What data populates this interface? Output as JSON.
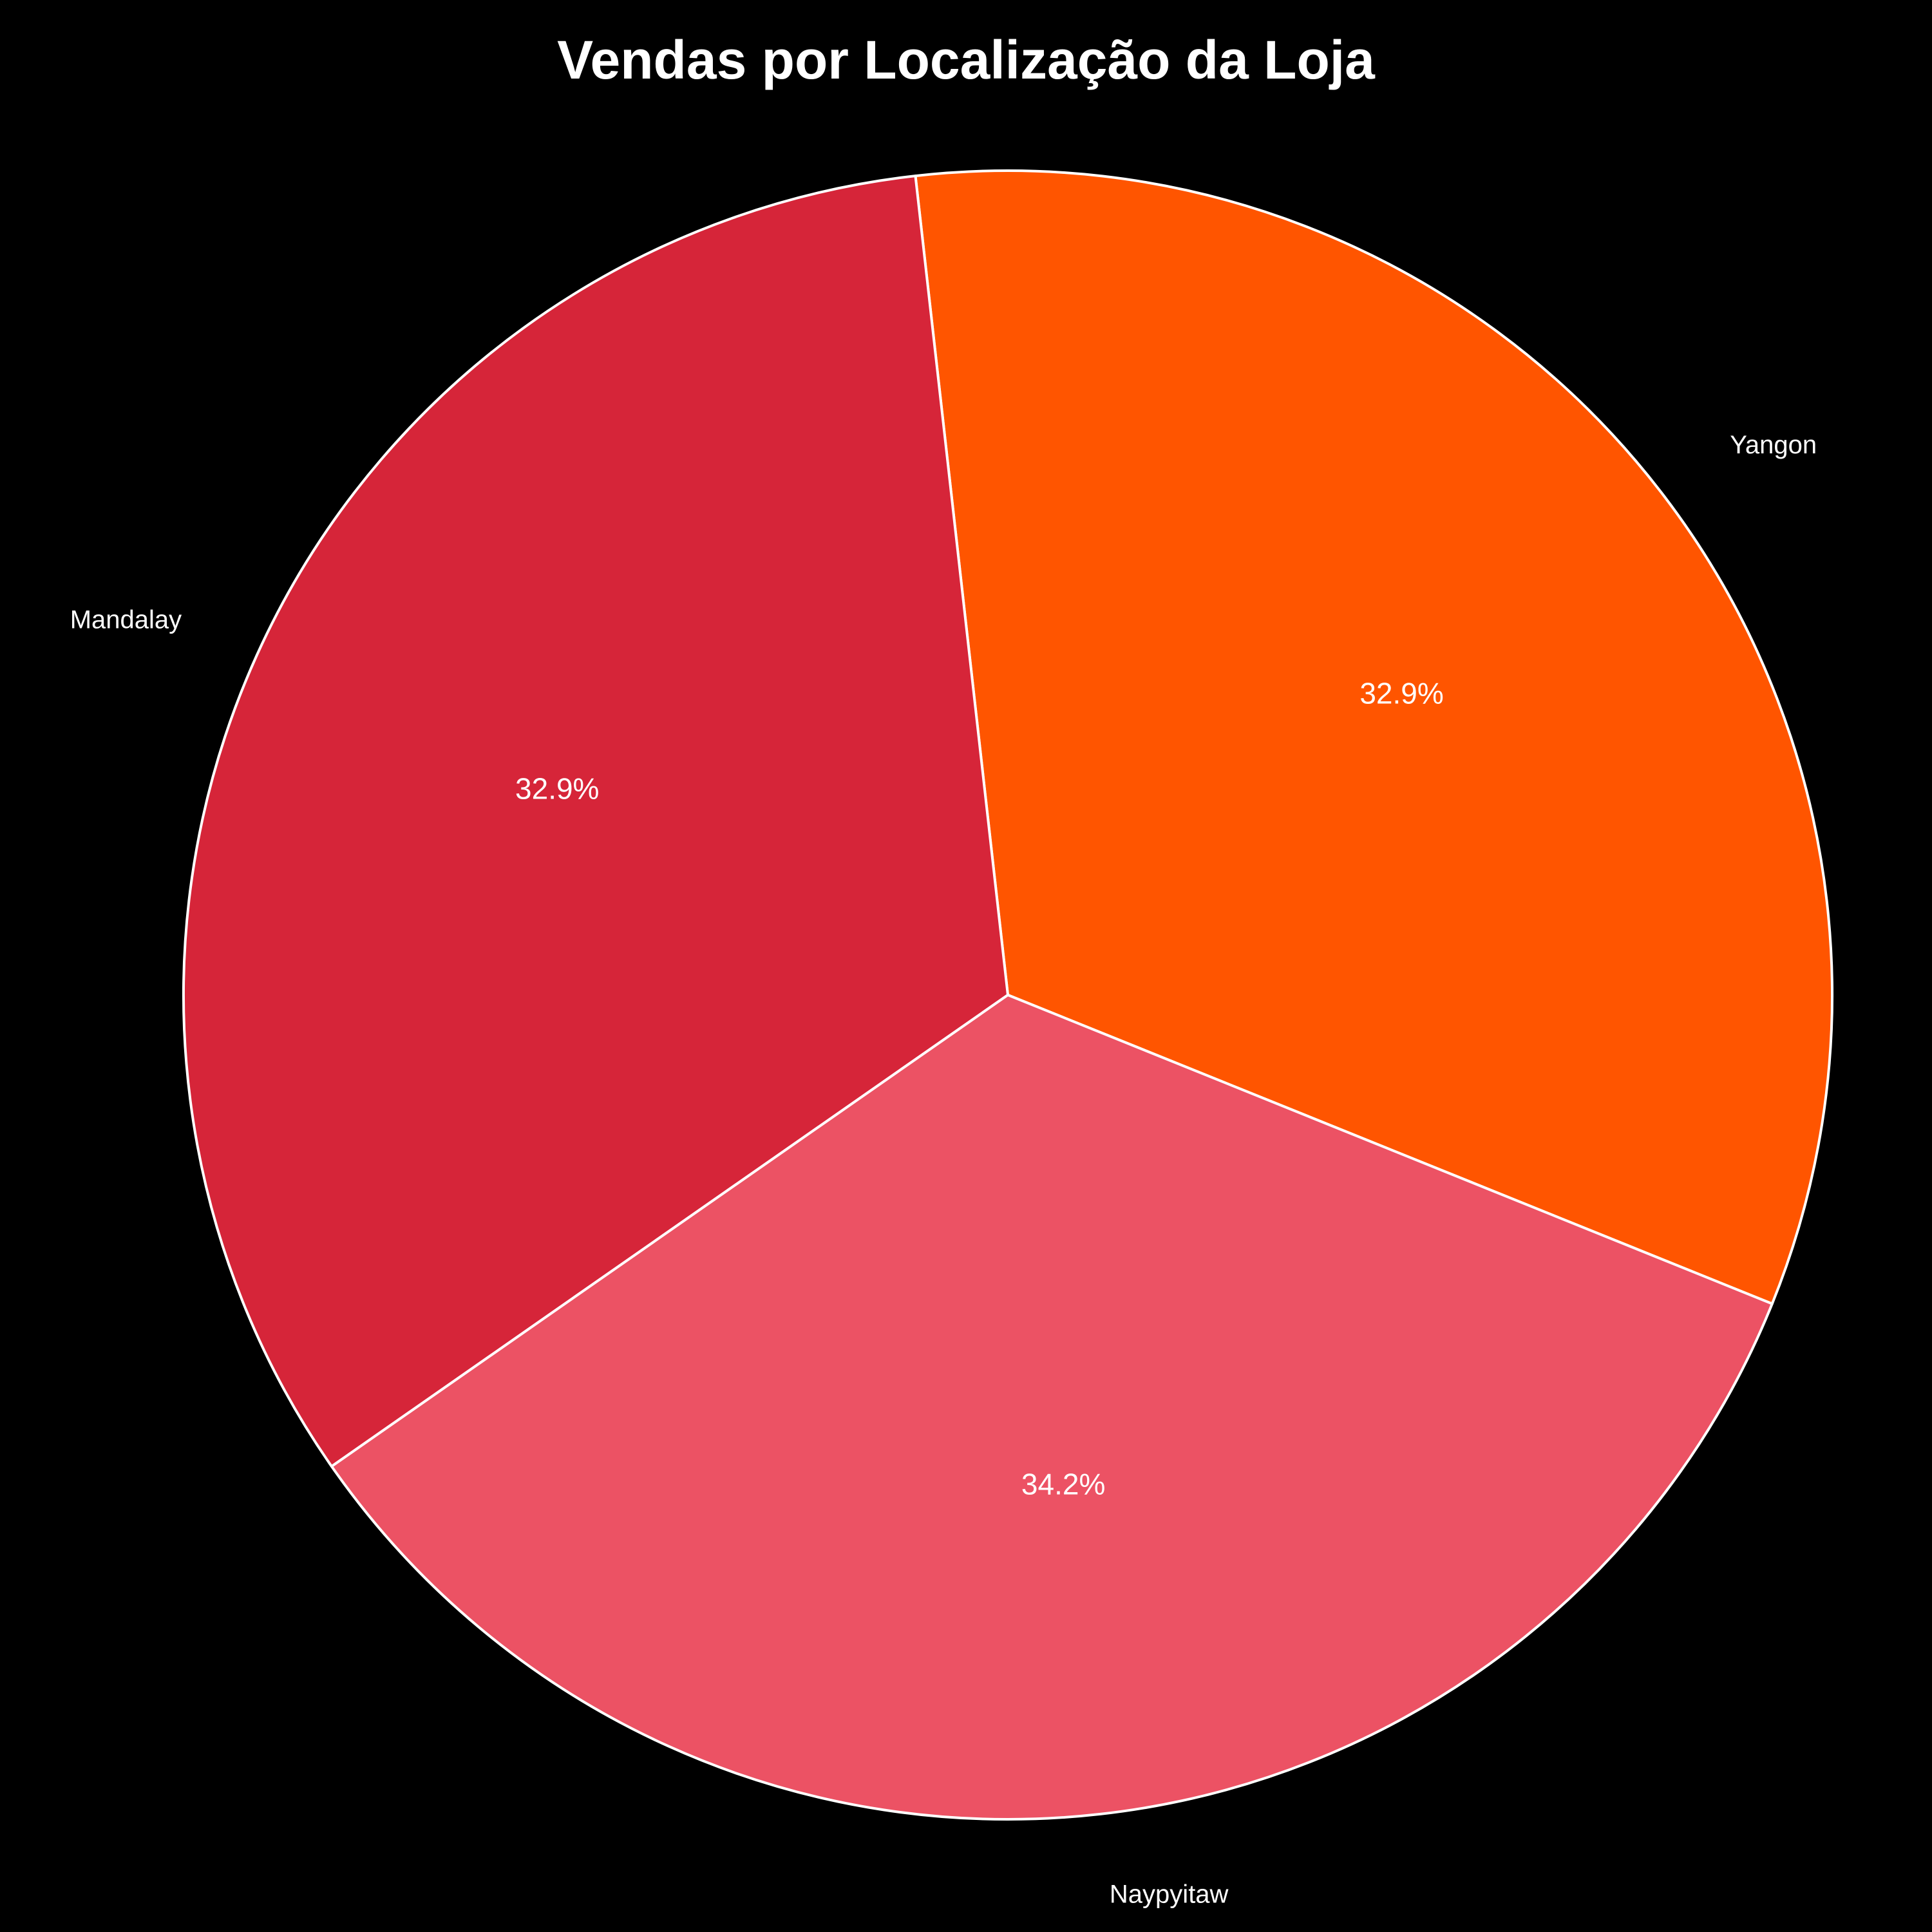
{
  "chart_data": {
    "type": "pie",
    "title": "Vendas por Localização da Loja",
    "slices": [
      {
        "label": "Yangon",
        "value": 32.9,
        "pct_label": "32.9%",
        "color": "#ff5500"
      },
      {
        "label": "Mandalay",
        "value": 32.9,
        "pct_label": "32.9%",
        "color": "#d62539"
      },
      {
        "label": "Naypyitaw",
        "value": 34.2,
        "pct_label": "34.2%",
        "color": "#ec5264"
      }
    ],
    "start_angle_deg": -22,
    "direction": "counterclockwise",
    "background": "#000000",
    "edge_color": "#ffffff"
  }
}
